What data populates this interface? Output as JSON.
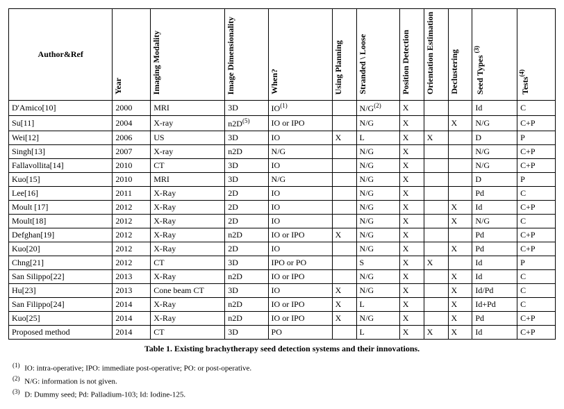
{
  "headers": {
    "author": "Author&Ref",
    "year": "Year",
    "modality": "Imaging Modality",
    "dimensionality": "Image Dimensionality",
    "when": "When?",
    "planning": "Using Planning",
    "stranded": "Stranded \\ Loose",
    "position": "Position Detection",
    "orientation": "Orientation Estimation",
    "declustering": "Declustering",
    "seed_types": "Seed Types",
    "seed_types_sup": "(3)",
    "tests": "Tests",
    "tests_sup": "(4)"
  },
  "rows": [
    {
      "author": "D'Amico[10]",
      "year": "2000",
      "modality": "MRI",
      "dim": "3D",
      "dim_sup": "",
      "when": "IO",
      "when_sup": "(1)",
      "planning": "",
      "stranded": "N/G",
      "stranded_sup": "(2)",
      "pos": "X",
      "orient": "",
      "declu": "",
      "seed": "Id",
      "tests": "C"
    },
    {
      "author": "Su[11]",
      "year": "2004",
      "modality": "X-ray",
      "dim": "n2D",
      "dim_sup": "(5)",
      "when": "IO or IPO",
      "when_sup": "",
      "planning": "",
      "stranded": "N/G",
      "stranded_sup": "",
      "pos": "X",
      "orient": "",
      "declu": "X",
      "seed": "N/G",
      "tests": "C+P"
    },
    {
      "author": "Wei[12]",
      "year": "2006",
      "modality": "US",
      "dim": "3D",
      "dim_sup": "",
      "when": "IO",
      "when_sup": "",
      "planning": "X",
      "stranded": "L",
      "stranded_sup": "",
      "pos": "X",
      "orient": "X",
      "declu": "",
      "seed": "D",
      "tests": "P"
    },
    {
      "author": "Singh[13]",
      "year": "2007",
      "modality": "X-ray",
      "dim": "n2D",
      "dim_sup": "",
      "when": "N/G",
      "when_sup": "",
      "planning": "",
      "stranded": "N/G",
      "stranded_sup": "",
      "pos": "X",
      "orient": "",
      "declu": "",
      "seed": "N/G",
      "tests": "C+P"
    },
    {
      "author": "Fallavollita[14]",
      "year": "2010",
      "modality": "CT",
      "dim": "3D",
      "dim_sup": "",
      "when": "IO",
      "when_sup": "",
      "planning": "",
      "stranded": "N/G",
      "stranded_sup": "",
      "pos": "X",
      "orient": "",
      "declu": "",
      "seed": "N/G",
      "tests": "C+P"
    },
    {
      "author": "Kuo[15]",
      "year": "2010",
      "modality": "MRI",
      "dim": "3D",
      "dim_sup": "",
      "when": "N/G",
      "when_sup": "",
      "planning": "",
      "stranded": "N/G",
      "stranded_sup": "",
      "pos": "X",
      "orient": "",
      "declu": "",
      "seed": "D",
      "tests": "P"
    },
    {
      "author": "Lee[16]",
      "year": "2011",
      "modality": "X-Ray",
      "dim": "2D",
      "dim_sup": "",
      "when": "IO",
      "when_sup": "",
      "planning": "",
      "stranded": "N/G",
      "stranded_sup": "",
      "pos": "X",
      "orient": "",
      "declu": "",
      "seed": "Pd",
      "tests": "C"
    },
    {
      "author": "Moult [17]",
      "year": "2012",
      "modality": "X-Ray",
      "dim": "2D",
      "dim_sup": "",
      "when": "IO",
      "when_sup": "",
      "planning": "",
      "stranded": "N/G",
      "stranded_sup": "",
      "pos": "X",
      "orient": "",
      "declu": "X",
      "seed": "Id",
      "tests": "C+P"
    },
    {
      "author": "Moult[18]",
      "year": "2012",
      "modality": "X-Ray",
      "dim": "2D",
      "dim_sup": "",
      "when": "IO",
      "when_sup": "",
      "planning": "",
      "stranded": "N/G",
      "stranded_sup": "",
      "pos": "X",
      "orient": "",
      "declu": "X",
      "seed": "N/G",
      "tests": "C"
    },
    {
      "author": "Defghan[19]",
      "year": "2012",
      "modality": "X-Ray",
      "dim": "n2D",
      "dim_sup": "",
      "when": "IO or IPO",
      "when_sup": "",
      "planning": "X",
      "stranded": "N/G",
      "stranded_sup": "",
      "pos": "X",
      "orient": "",
      "declu": "",
      "seed": "Pd",
      "tests": "C+P"
    },
    {
      "author": "Kuo[20]",
      "year": "2012",
      "modality": "X-Ray",
      "dim": "2D",
      "dim_sup": "",
      "when": "IO",
      "when_sup": "",
      "planning": "",
      "stranded": "N/G",
      "stranded_sup": "",
      "pos": "X",
      "orient": "",
      "declu": "X",
      "seed": "Pd",
      "tests": "C+P"
    },
    {
      "author": "Chng[21]",
      "year": "2012",
      "modality": "CT",
      "dim": "3D",
      "dim_sup": "",
      "when": "IPO or PO",
      "when_sup": "",
      "planning": "",
      "stranded": "S",
      "stranded_sup": "",
      "pos": "X",
      "orient": "X",
      "declu": "",
      "seed": "Id",
      "tests": "P"
    },
    {
      "author": "San Silippo[22]",
      "year": "2013",
      "modality": "X-Ray",
      "dim": "n2D",
      "dim_sup": "",
      "when": "IO or IPO",
      "when_sup": "",
      "planning": "",
      "stranded": "N/G",
      "stranded_sup": "",
      "pos": "X",
      "orient": "",
      "declu": "X",
      "seed": "Id",
      "tests": "C"
    },
    {
      "author": "Hu[23]",
      "year": "2013",
      "modality": "Cone beam CT",
      "dim": "3D",
      "dim_sup": "",
      "when": "IO",
      "when_sup": "",
      "planning": "X",
      "stranded": "N/G",
      "stranded_sup": "",
      "pos": "X",
      "orient": "",
      "declu": "X",
      "seed": "Id/Pd",
      "tests": "C"
    },
    {
      "author": "San Filippo[24]",
      "year": "2014",
      "modality": "X-Ray",
      "dim": "n2D",
      "dim_sup": "",
      "when": "IO or IPO",
      "when_sup": "",
      "planning": "X",
      "stranded": "L",
      "stranded_sup": "",
      "pos": "X",
      "orient": "",
      "declu": "X",
      "seed": "Id+Pd",
      "tests": "C"
    },
    {
      "author": "Kuo[25]",
      "year": "2014",
      "modality": "X-Ray",
      "dim": "n2D",
      "dim_sup": "",
      "when": "IO or IPO",
      "when_sup": "",
      "planning": "X",
      "stranded": "N/G",
      "stranded_sup": "",
      "pos": "X",
      "orient": "",
      "declu": "X",
      "seed": "Pd",
      "tests": "C+P"
    },
    {
      "author": "Proposed method",
      "year": "2014",
      "modality": "CT",
      "dim": "3D",
      "dim_sup": "",
      "when": "PO",
      "when_sup": "",
      "planning": "",
      "stranded": "L",
      "stranded_sup": "",
      "pos": "X",
      "orient": "X",
      "declu": "X",
      "seed": "Id",
      "tests": "C+P"
    }
  ],
  "caption": "Table 1. Existing brachytherapy seed detection systems and their innovations.",
  "footnotes": [
    {
      "sup": "(1)",
      "text": "IO:  intra-operative;  IPO: immediate post-operative; PO: or post-operative."
    },
    {
      "sup": "(2)",
      "text": "N/G: information is not given."
    },
    {
      "sup": "(3)",
      "text": "D: Dummy seed; Pd: Palladium-103; Id: Iodine-125."
    }
  ]
}
